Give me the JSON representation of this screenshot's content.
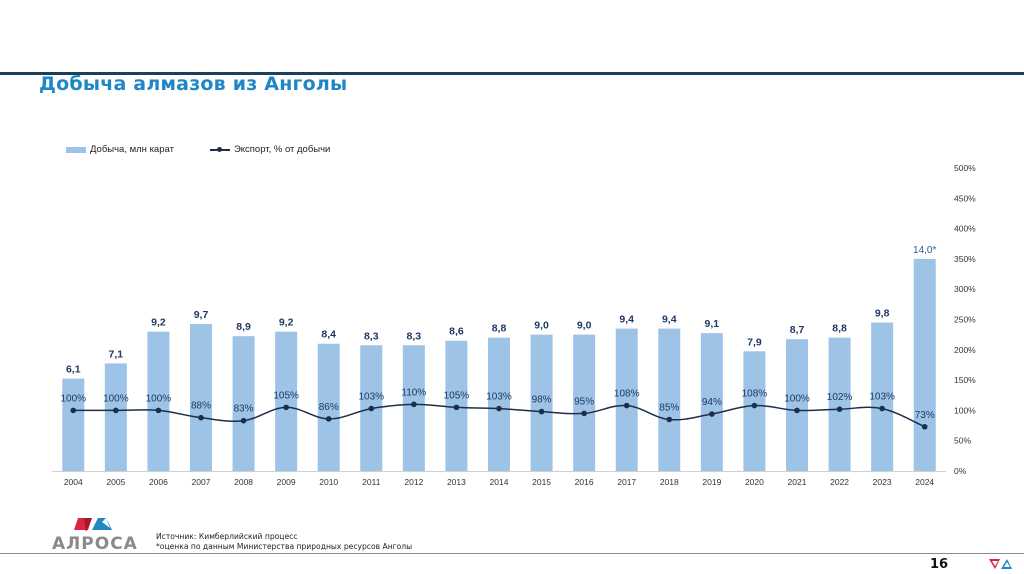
{
  "slide": {
    "title": "Добыча алмазов из Анголы",
    "page_number": "16",
    "logo_text": "АЛРОСА",
    "source_line": "Источник: Кимберлийский процесс",
    "footnote_line": "*оценка по данным Министерства природных ресурсов Анголы"
  },
  "colors": {
    "bar": "#9dc3e6",
    "line": "#1c2f4a",
    "title": "#1f87c6",
    "bar_label": "#1f3864",
    "logo_red": "#d7263d",
    "logo_blue": "#1f87c6"
  },
  "chart_data": {
    "type": "bar",
    "title": "",
    "xlabel": "",
    "ylabel": "",
    "legend_position": "top-left",
    "grid": false,
    "categories": [
      "2004",
      "2005",
      "2006",
      "2007",
      "2008",
      "2009",
      "2010",
      "2011",
      "2012",
      "2013",
      "2014",
      "2015",
      "2016",
      "2017",
      "2018",
      "2019",
      "2020",
      "2021",
      "2022",
      "2023",
      "2024"
    ],
    "series": [
      {
        "name": "Добыча, млн карат",
        "type": "bar",
        "axis": "primary",
        "values": [
          6.1,
          7.1,
          9.2,
          9.7,
          8.9,
          9.2,
          8.4,
          8.3,
          8.3,
          8.6,
          8.8,
          9.0,
          9.0,
          9.4,
          9.4,
          9.1,
          7.9,
          8.7,
          8.8,
          9.8,
          14.0
        ],
        "labels": [
          "6,1",
          "7,1",
          "9,2",
          "9,7",
          "8,9",
          "9,2",
          "8,4",
          "8,3",
          "8,3",
          "8,6",
          "8,8",
          "9,0",
          "9,0",
          "9,4",
          "9,4",
          "9,1",
          "7,9",
          "8,7",
          "8,8",
          "9,8",
          "14,0*"
        ]
      },
      {
        "name": "Экспорт, % от добычи",
        "type": "line",
        "axis": "secondary",
        "values": [
          100,
          100,
          100,
          88,
          83,
          105,
          86,
          103,
          110,
          105,
          103,
          98,
          95,
          108,
          85,
          94,
          108,
          100,
          102,
          103,
          73
        ],
        "labels": [
          "100%",
          "100%",
          "100%",
          "88%",
          "83%",
          "105%",
          "86%",
          "103%",
          "110%",
          "105%",
          "103%",
          "98%",
          "95%",
          "108%",
          "85%",
          "94%",
          "108%",
          "100%",
          "102%",
          "103%",
          "73%"
        ]
      }
    ],
    "primary_ylim": [
      0,
      20
    ],
    "secondary_axis": {
      "ylim": [
        0,
        500
      ],
      "ticks": [
        "0%",
        "50%",
        "100%",
        "150%",
        "200%",
        "250%",
        "300%",
        "350%",
        "400%",
        "450%",
        "500%"
      ],
      "position": "right"
    }
  }
}
